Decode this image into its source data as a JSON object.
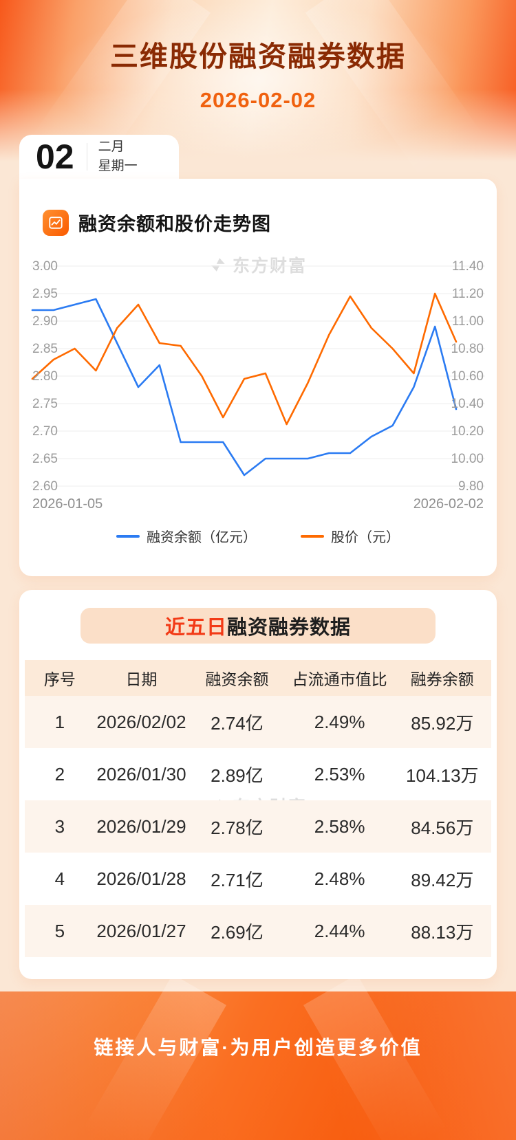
{
  "header": {
    "title": "三维股份融资融券数据",
    "date": "2026-02-02"
  },
  "date_card": {
    "day": "02",
    "month": "二月",
    "weekday": "星期一"
  },
  "chart_section": {
    "title": "融资余额和股价走势图",
    "watermark": "东方财富"
  },
  "chart_data": {
    "type": "line",
    "title": "融资余额和股价走势图",
    "x_axis": {
      "start_label": "2026-01-05",
      "end_label": "2026-02-02",
      "num_points": 21
    },
    "left_axis": {
      "min": 2.6,
      "max": 3.0,
      "ticks": [
        "3.00",
        "2.95",
        "2.90",
        "2.85",
        "2.80",
        "2.75",
        "2.70",
        "2.65",
        "2.60"
      ]
    },
    "right_axis": {
      "min": 9.8,
      "max": 11.4,
      "ticks": [
        "11.40",
        "11.20",
        "11.00",
        "10.80",
        "10.60",
        "10.40",
        "10.20",
        "10.00",
        "9.80"
      ]
    },
    "grid": true,
    "legend_position": "bottom",
    "series": [
      {
        "name": "融资余额（亿元）",
        "axis": "left",
        "color": "#2b7bf2",
        "values": [
          2.92,
          2.92,
          2.93,
          2.94,
          2.86,
          2.78,
          2.82,
          2.68,
          2.68,
          2.68,
          2.62,
          2.65,
          2.65,
          2.65,
          2.66,
          2.66,
          2.69,
          2.71,
          2.78,
          2.89,
          2.74
        ]
      },
      {
        "name": "股价（元）",
        "axis": "right",
        "color": "#fe6a00",
        "values": [
          10.58,
          10.72,
          10.8,
          10.64,
          10.95,
          11.12,
          10.84,
          10.82,
          10.6,
          10.3,
          10.58,
          10.62,
          10.25,
          10.55,
          10.9,
          11.18,
          10.95,
          10.8,
          10.62,
          11.2,
          10.85
        ]
      }
    ]
  },
  "table_section": {
    "title_highlight": "近五日",
    "title_rest": "融资融券数据",
    "watermark": "东方财富",
    "columns": [
      "序号",
      "日期",
      "融资余额",
      "占流通市值比",
      "融券余额"
    ],
    "rows": [
      [
        "1",
        "2026/02/02",
        "2.74亿",
        "2.49%",
        "85.92万"
      ],
      [
        "2",
        "2026/01/30",
        "2.89亿",
        "2.53%",
        "104.13万"
      ],
      [
        "3",
        "2026/01/29",
        "2.78亿",
        "2.58%",
        "84.56万"
      ],
      [
        "4",
        "2026/01/28",
        "2.71亿",
        "2.48%",
        "89.42万"
      ],
      [
        "5",
        "2026/01/27",
        "2.69亿",
        "2.44%",
        "88.13万"
      ]
    ]
  },
  "footer": {
    "slogan": "链接人与财富·为用户创造更多价值"
  },
  "colors": {
    "accent": "#f75708",
    "blue_line": "#2b7bf2",
    "orange_line": "#fe6a00",
    "title": "#8a2a03",
    "highlight_red": "#f23a16"
  }
}
